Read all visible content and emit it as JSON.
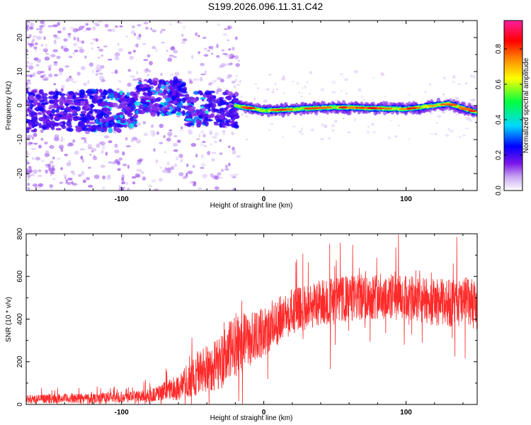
{
  "title": "S199.2026.096.11.31.C42",
  "chart_data": [
    {
      "type": "heatmap",
      "name": "spectrogram",
      "xlabel": "Height of straight line (km)",
      "ylabel": "Frequency (Hz)",
      "xlim": [
        -167,
        150
      ],
      "ylim": [
        -25,
        25
      ],
      "xticks": [
        -100,
        0,
        100
      ],
      "yticks": [
        -20,
        -10,
        0,
        10,
        20
      ],
      "colorbar": {
        "label": "Normalized spectral amplitude",
        "ticks": [
          "0.0",
          "0.2",
          "0.4",
          "0.6",
          "0.8"
        ],
        "tick_values": [
          0.0,
          0.2,
          0.4,
          0.6,
          0.8
        ],
        "range": [
          0,
          0.96
        ],
        "colors": [
          "#ffffff",
          "#c9a6f3",
          "#7b16e8",
          "#0000ff",
          "#00d8ff",
          "#00ff40",
          "#ffff00",
          "#ff8000",
          "#ff0000",
          "#ff1ea0"
        ]
      },
      "ridge": {
        "frequency_hz": 0,
        "description_values": [
          {
            "x": -20,
            "f": 0.0
          },
          {
            "x": 0,
            "f": -1.5
          },
          {
            "x": 50,
            "f": -0.5
          },
          {
            "x": 100,
            "f": -1.0
          },
          {
            "x": 130,
            "f": 0.5
          },
          {
            "x": 150,
            "f": -2.0
          }
        ]
      }
    },
    {
      "type": "line",
      "name": "snr",
      "xlabel": "Height of straight line (km)",
      "ylabel": "SNR (10 * v/v)",
      "xlim": [
        -167,
        150
      ],
      "ylim": [
        0,
        800
      ],
      "xticks": [
        -100,
        0,
        100
      ],
      "yticks": [
        0,
        200,
        400,
        600,
        800
      ],
      "color": "#ff2a2a",
      "envelope": [
        {
          "x": -167,
          "mean": 25,
          "spread": 20
        },
        {
          "x": -120,
          "mean": 30,
          "spread": 25
        },
        {
          "x": -80,
          "mean": 40,
          "spread": 30
        },
        {
          "x": -60,
          "mean": 80,
          "spread": 60
        },
        {
          "x": -45,
          "mean": 150,
          "spread": 110
        },
        {
          "x": -30,
          "mean": 200,
          "spread": 130
        },
        {
          "x": -20,
          "mean": 280,
          "spread": 150
        },
        {
          "x": -5,
          "mean": 320,
          "spread": 120
        },
        {
          "x": 5,
          "mean": 360,
          "spread": 110
        },
        {
          "x": 15,
          "mean": 420,
          "spread": 110
        },
        {
          "x": 40,
          "mean": 480,
          "spread": 110
        },
        {
          "x": 80,
          "mean": 510,
          "spread": 110
        },
        {
          "x": 120,
          "mean": 480,
          "spread": 110
        },
        {
          "x": 150,
          "mean": 470,
          "spread": 120
        }
      ]
    }
  ]
}
